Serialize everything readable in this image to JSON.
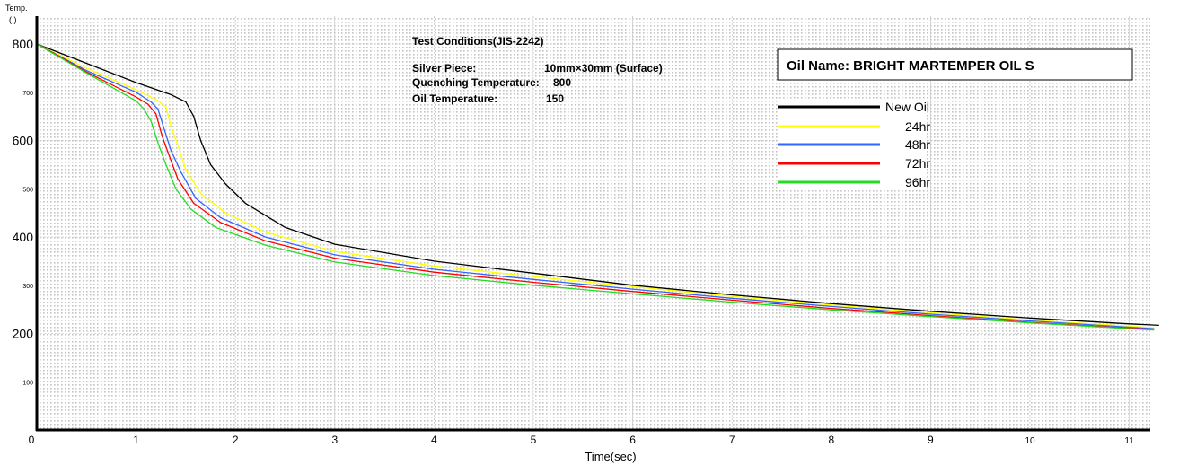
{
  "chart_data": {
    "type": "line",
    "ylabel": "Temp.",
    "yunit": "(  )",
    "xlabel": "Time(sec)",
    "xlim": [
      0,
      11.3
    ],
    "ylim": [
      0,
      800
    ],
    "xticks": [
      0,
      1,
      2,
      3,
      4,
      5,
      6,
      7,
      8,
      9,
      10,
      11
    ],
    "yticks_major": [
      200,
      400,
      600,
      800
    ],
    "yticks_minor": [
      100,
      300,
      500,
      700
    ],
    "grid": true,
    "legend_position": "top-right",
    "test_conditions": {
      "title": "Test Conditions(JIS-2242)",
      "rows": [
        {
          "label": "Silver Piece:",
          "value": "10mm×30mm (Surface)"
        },
        {
          "label": "Quenching Temperature:",
          "value": "800"
        },
        {
          "label": "Oil Temperature:",
          "value": "150"
        }
      ]
    },
    "oil_name": "Oil Name: BRIGHT MARTEMPER OIL S",
    "series": [
      {
        "name": "New Oil",
        "color": "#000000",
        "x": [
          0,
          0.5,
          1.0,
          1.35,
          1.5,
          1.58,
          1.65,
          1.75,
          1.9,
          2.1,
          2.5,
          3.0,
          4.0,
          5.0,
          6.0,
          7.0,
          8.0,
          9.0,
          10.0,
          11.0,
          11.3
        ],
        "y": [
          800,
          760,
          720,
          695,
          680,
          650,
          600,
          550,
          510,
          470,
          420,
          385,
          350,
          325,
          300,
          280,
          262,
          246,
          232,
          220,
          217
        ]
      },
      {
        "name": "24hr",
        "color": "#ffff00",
        "x": [
          0,
          0.5,
          1.0,
          1.2,
          1.3,
          1.35,
          1.42,
          1.5,
          1.65,
          1.9,
          2.3,
          3.0,
          4.0,
          5.0,
          6.0,
          7.0,
          8.0,
          9.0,
          10.0,
          11.0,
          11.25
        ],
        "y": [
          800,
          750,
          705,
          685,
          670,
          630,
          590,
          540,
          490,
          450,
          410,
          370,
          340,
          318,
          297,
          277,
          259,
          243,
          228,
          215,
          212
        ]
      },
      {
        "name": "48hr",
        "color": "#3366ff",
        "x": [
          0,
          0.5,
          1.0,
          1.15,
          1.22,
          1.28,
          1.35,
          1.45,
          1.6,
          1.85,
          2.3,
          3.0,
          4.0,
          5.0,
          6.0,
          7.0,
          8.0,
          9.0,
          10.0,
          11.0,
          11.25
        ],
        "y": [
          800,
          745,
          700,
          680,
          665,
          625,
          580,
          535,
          480,
          440,
          400,
          363,
          333,
          312,
          292,
          273,
          256,
          240,
          226,
          213,
          210
        ]
      },
      {
        "name": "72hr",
        "color": "#ff0000",
        "x": [
          0,
          0.5,
          1.0,
          1.12,
          1.2,
          1.26,
          1.33,
          1.42,
          1.58,
          1.85,
          2.3,
          3.0,
          4.0,
          5.0,
          6.0,
          7.0,
          8.0,
          9.0,
          10.0,
          11.0,
          11.25
        ],
        "y": [
          800,
          742,
          690,
          675,
          655,
          610,
          570,
          520,
          470,
          430,
          392,
          356,
          327,
          306,
          287,
          269,
          252,
          237,
          223,
          211,
          208
        ]
      },
      {
        "name": "96hr",
        "color": "#22dd22",
        "x": [
          0,
          0.5,
          1.0,
          1.08,
          1.15,
          1.22,
          1.3,
          1.4,
          1.55,
          1.8,
          2.3,
          3.0,
          4.0,
          5.0,
          6.0,
          7.0,
          8.0,
          9.0,
          10.0,
          11.0,
          11.25
        ],
        "y": [
          800,
          740,
          682,
          665,
          640,
          595,
          550,
          500,
          458,
          420,
          383,
          348,
          320,
          300,
          282,
          265,
          249,
          235,
          222,
          210,
          207
        ]
      }
    ]
  }
}
